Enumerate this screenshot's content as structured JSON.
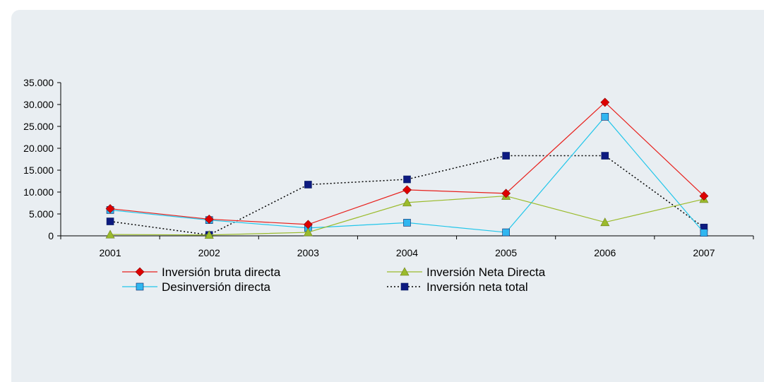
{
  "chart_data": {
    "type": "line",
    "title": "",
    "xlabel": "",
    "ylabel": "",
    "categories": [
      "2001",
      "2002",
      "2003",
      "2004",
      "2005",
      "2006",
      "2007"
    ],
    "ylim": [
      0,
      35000
    ],
    "yticks": [
      0,
      5000,
      10000,
      15000,
      20000,
      25000,
      30000,
      35000
    ],
    "ytick_labels": [
      "0",
      "5.000",
      "10.000",
      "15.000",
      "20.000",
      "25.000",
      "30.000",
      "35.000"
    ],
    "grid": false,
    "legend_position": "bottom",
    "series": [
      {
        "name": "Inversión bruta directa",
        "color": "#e8201c",
        "marker": "diamond",
        "marker_color": "#dd0000",
        "dash": "solid",
        "values": [
          6200,
          3800,
          2600,
          10500,
          9700,
          30500,
          9100
        ]
      },
      {
        "name": "Inversión Neta Directa",
        "color": "#9bbb2c",
        "marker": "triangle",
        "marker_color": "#9bbb2c",
        "dash": "solid",
        "values": [
          300,
          200,
          800,
          7600,
          9100,
          3100,
          8400
        ]
      },
      {
        "name": "Desinversión directa",
        "color": "#22c6ea",
        "marker": "square",
        "marker_color": "#30b6f0",
        "dash": "solid",
        "values": [
          5900,
          3600,
          1800,
          3000,
          800,
          27200,
          700
        ]
      },
      {
        "name": "Inversión neta total",
        "color": "#000000",
        "marker": "square",
        "marker_color": "#0d1a80",
        "dash": "dotted",
        "values": [
          3300,
          200,
          11700,
          12900,
          18300,
          18300,
          1900
        ]
      }
    ]
  }
}
